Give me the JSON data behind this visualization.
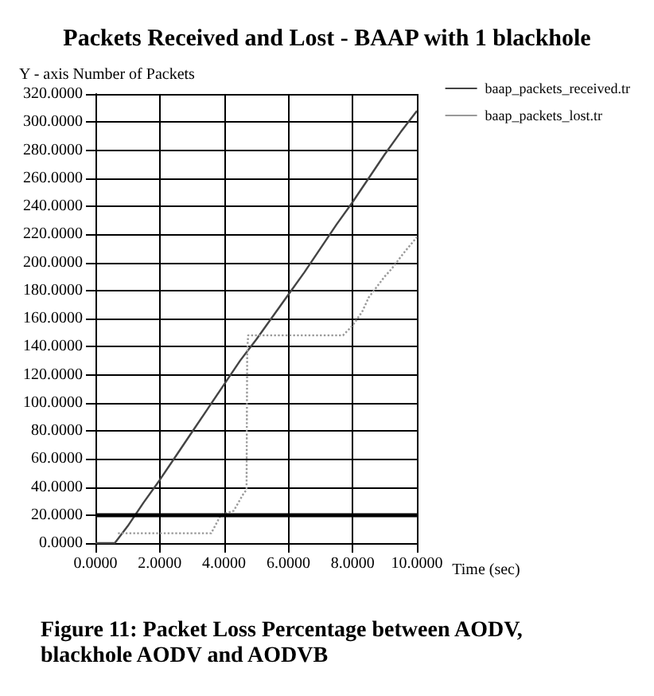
{
  "chart_data": {
    "type": "line",
    "title": "Packets Received and Lost - BAAP with 1 blackhole",
    "ylabel": "Y - axis Number of Packets",
    "xlabel": "Time (sec)",
    "annotations": [
      "Figure 11: Packet Loss Percentage between AODV, blackhole AODV and AODVB"
    ],
    "series": [
      {
        "name": "baap_packets_received.tr",
        "color": "#444444",
        "line_style": "solid",
        "x": [
          0,
          0.6,
          1,
          1.5,
          2,
          2.5,
          3,
          3.5,
          4,
          4.5,
          4.7,
          5,
          5.5,
          6,
          6.5,
          7,
          7.5,
          8,
          8.5,
          9,
          9.5,
          10
        ],
        "values": [
          0,
          0,
          12,
          29,
          45,
          62,
          79,
          96,
          113,
          130,
          136,
          145,
          161,
          177,
          193,
          210,
          227,
          243,
          260,
          277,
          293,
          308
        ]
      },
      {
        "name": "baap_packets_lost.tr",
        "color": "#999999",
        "line_style": "dotted",
        "x": [
          0.7,
          3.6,
          3.9,
          4.3,
          4.6,
          4.7,
          4.72,
          4.75,
          7.7,
          8,
          8.3,
          8.5,
          9,
          9.2,
          9.6,
          10
        ],
        "values": [
          7,
          7,
          20,
          23,
          35,
          38,
          136,
          148,
          148,
          155,
          165,
          175,
          190,
          195,
          207,
          218
        ]
      }
    ],
    "xlim": [
      0,
      10
    ],
    "xticks": [
      {
        "value": 0,
        "label": "0.0000"
      },
      {
        "value": 2,
        "label": "2.0000"
      },
      {
        "value": 4,
        "label": "4.0000"
      },
      {
        "value": 6,
        "label": "6.0000"
      },
      {
        "value": 8,
        "label": "8.0000"
      },
      {
        "value": 10,
        "label": "10.0000"
      }
    ],
    "ylim": [
      0,
      320
    ],
    "yticks": [
      {
        "value": 0,
        "label": "0.0000"
      },
      {
        "value": 20,
        "label": "20.0000"
      },
      {
        "value": 40,
        "label": "40.0000"
      },
      {
        "value": 60,
        "label": "60.0000"
      },
      {
        "value": 80,
        "label": "80.0000"
      },
      {
        "value": 100,
        "label": "100.0000"
      },
      {
        "value": 120,
        "label": "120.0000"
      },
      {
        "value": 140,
        "label": "140.0000"
      },
      {
        "value": 160,
        "label": "160.0000"
      },
      {
        "value": 180,
        "label": "180.0000"
      },
      {
        "value": 200,
        "label": "200.0000"
      },
      {
        "value": 220,
        "label": "220.0000"
      },
      {
        "value": 240,
        "label": "240.0000"
      },
      {
        "value": 260,
        "label": "260.0000"
      },
      {
        "value": 280,
        "label": "280.0000"
      },
      {
        "value": 300,
        "label": "300.0000"
      },
      {
        "value": 320,
        "label": "320.0000"
      }
    ],
    "ref_lines": [
      {
        "axis": "y",
        "value": 20,
        "color": "#000000"
      }
    ],
    "grid": true,
    "legend": "top right",
    "marker": "none"
  }
}
